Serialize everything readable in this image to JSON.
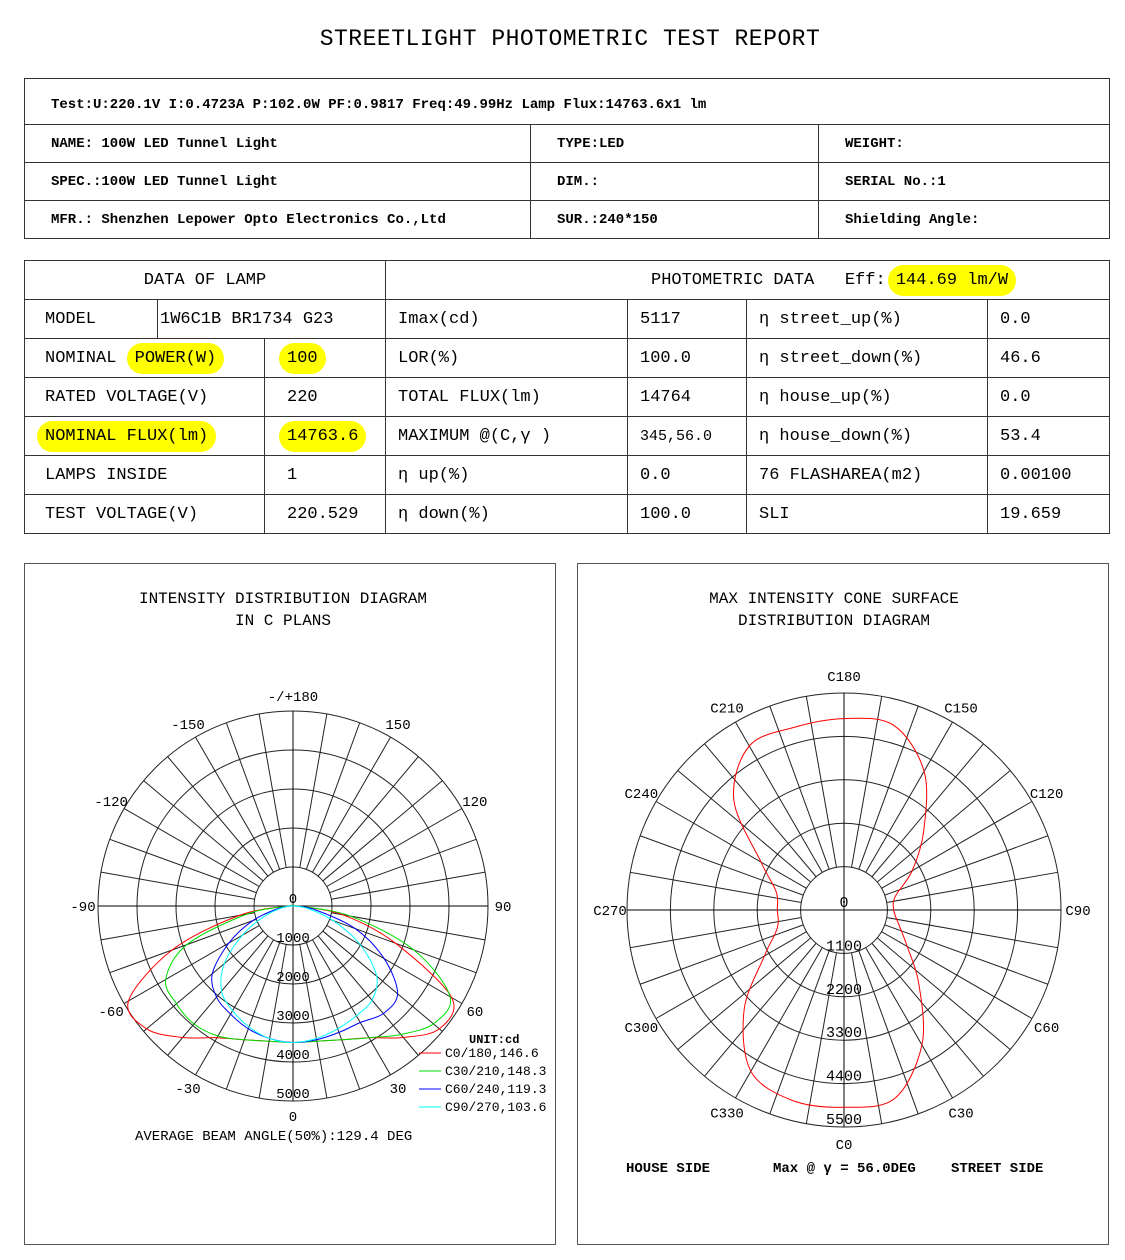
{
  "title": "STREETLIGHT PHOTOMETRIC TEST REPORT",
  "info": {
    "test_line": "Test:U:220.1V I:0.4723A P:102.0W PF:0.9817 Freq:49.99Hz  Lamp Flux:14763.6x1 lm",
    "name": "NAME: 100W LED Tunnel Light",
    "type": "TYPE:LED",
    "weight": "WEIGHT:",
    "spec": "SPEC.:100W LED Tunnel Light",
    "dim": "DIM.:",
    "serial": "SERIAL No.:1",
    "mfr": "MFR.: Shenzhen Lepower Opto Electronics Co.,Ltd",
    "sur": "SUR.:240*150",
    "shielding": "Shielding Angle:"
  },
  "lamp": {
    "header": "DATA OF LAMP",
    "photometric_header": "PHOTOMETRIC DATA",
    "eff_label": "Eff:",
    "eff_value": "144.69 lm/W",
    "model_label": "MODEL",
    "model_value": "1W6C1B BR1734 G23",
    "power_label_a": "NOMINAL",
    "power_label_b": "POWER(W)",
    "power_value": "100",
    "rated_label": "RATED VOLTAGE(V)",
    "rated_value": "220",
    "flux_label": "NOMINAL FLUX(lm)",
    "flux_value": "14763.6",
    "lamps_label": "LAMPS INSIDE",
    "lamps_value": "1",
    "testv_label": "TEST VOLTAGE(V)",
    "testv_value": "220.529",
    "highlight_color": "#ffff00"
  },
  "photometric": [
    {
      "l1": "Imax(cd)",
      "v1": "5117",
      "l2": "η street_up(%)",
      "v2": "0.0"
    },
    {
      "l1": "LOR(%)",
      "v1": "100.0",
      "l2": "η street_down(%)",
      "v2": "46.6"
    },
    {
      "l1": "TOTAL FLUX(lm)",
      "v1": "14764",
      "l2": "η house_up(%)",
      "v2": "0.0"
    },
    {
      "l1": "MAXIMUM @(C,γ )",
      "v1": "345,56.0",
      "l2": "η house_down(%)",
      "v2": "53.4"
    },
    {
      "l1": "η up(%)",
      "v1": "0.0",
      "l2": "76 FLASHAREA(m2)",
      "v2": "0.00100"
    },
    {
      "l1": "η down(%)",
      "v1": "100.0",
      "l2": "SLI",
      "v2": "19.659"
    }
  ],
  "chart_data": [
    {
      "type": "polar-line",
      "title": "INTENSITY DISTRIBUTION DIAGRAM",
      "subtitle": "IN C PLANS",
      "angle_labels": [
        "-/+180",
        "150",
        "120",
        "90",
        "60",
        "30",
        "0",
        "-30",
        "-60",
        "-90",
        "-120",
        "-150"
      ],
      "angle_label_values": [
        180,
        150,
        120,
        90,
        60,
        30,
        0,
        -30,
        -60,
        -90,
        -120,
        -150
      ],
      "ring_labels": [
        "0",
        "1000",
        "2000",
        "3000",
        "4000",
        "5000"
      ],
      "rmax": 5000,
      "unit": "UNIT:cd",
      "gamma": [
        -90,
        -80,
        -70,
        -60,
        -50,
        -40,
        -30,
        -20,
        -10,
        0,
        10,
        20,
        30,
        40,
        50,
        60,
        70,
        80,
        90
      ],
      "series": [
        {
          "name": "C0/180,146.6",
          "color": "#ff0000",
          "values": [
            100,
            1400,
            3300,
            4870,
            4900,
            4400,
            3900,
            3650,
            3520,
            3500,
            3520,
            3650,
            3900,
            4400,
            4900,
            4700,
            2800,
            1300,
            100
          ]
        },
        {
          "name": "C30/210,148.3",
          "color": "#00dd00",
          "values": [
            100,
            1200,
            2900,
            3770,
            3900,
            3950,
            3850,
            3650,
            3520,
            3500,
            3520,
            3650,
            3900,
            4300,
            4700,
            4650,
            3300,
            1500,
            100
          ]
        },
        {
          "name": "C60/240,119.3",
          "color": "#0000ff",
          "values": [
            50,
            400,
            1100,
            1900,
            2700,
            3050,
            3200,
            3350,
            3450,
            3500,
            3480,
            3450,
            3450,
            3600,
            3500,
            2700,
            1700,
            600,
            50
          ]
        },
        {
          "name": "C90/270,103.6",
          "color": "#00ffff",
          "values": [
            50,
            300,
            800,
            1500,
            2300,
            2850,
            3100,
            3300,
            3450,
            3500,
            3450,
            3350,
            3250,
            3150,
            2800,
            2000,
            1100,
            400,
            50
          ]
        }
      ],
      "footer": "AVERAGE BEAM ANGLE(50%):129.4 DEG"
    },
    {
      "type": "polar-line",
      "title": "MAX INTENSITY CONE SURFACE",
      "subtitle": "DISTRIBUTION DIAGRAM",
      "angle_labels": [
        "C180",
        "C150",
        "C120",
        "C90",
        "C60",
        "C30",
        "C0",
        "C330",
        "C300",
        "C270",
        "C240",
        "C210"
      ],
      "angle_label_values": [
        180,
        150,
        120,
        90,
        60,
        30,
        0,
        330,
        300,
        270,
        240,
        210
      ],
      "ring_labels": [
        "0",
        "1100",
        "2200",
        "3300",
        "4400",
        "5500"
      ],
      "rmax": 5500,
      "c": [
        0,
        15,
        30,
        45,
        60,
        75,
        90,
        105,
        120,
        135,
        150,
        165,
        180,
        195,
        210,
        225,
        240,
        255,
        270,
        285,
        300,
        315,
        330,
        345
      ],
      "values": [
        5000,
        4950,
        3950,
        2690,
        1850,
        1440,
        1260,
        1350,
        2000,
        2860,
        4060,
        4850,
        4850,
        4800,
        4800,
        3950,
        2430,
        1780,
        1690,
        1750,
        2330,
        3580,
        4720,
        5000
      ],
      "color": "#ff0000",
      "house_side": "HOUSE SIDE",
      "max_text": "Max @ γ  = 56.0DEG",
      "street_side": "STREET SIDE"
    }
  ]
}
